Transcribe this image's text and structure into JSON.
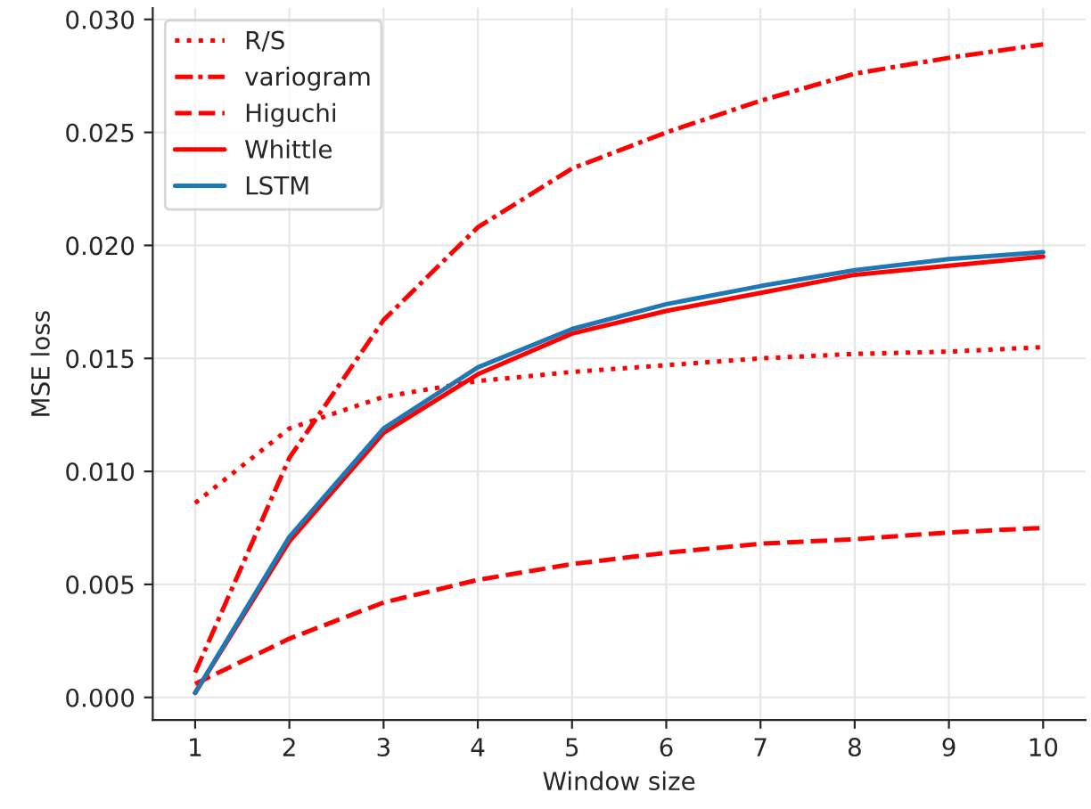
{
  "chart_data": {
    "type": "line",
    "xlabel": "Window size",
    "ylabel": "MSE loss",
    "x": [
      1,
      2,
      3,
      4,
      5,
      6,
      7,
      8,
      9,
      10
    ],
    "series": [
      {
        "name": "R/S",
        "color": "#ff0000",
        "line_style": "dotted",
        "values": [
          0.0086,
          0.0119,
          0.0133,
          0.014,
          0.0144,
          0.0147,
          0.015,
          0.0152,
          0.0153,
          0.0155
        ]
      },
      {
        "name": "variogram",
        "color": "#ff0000",
        "line_style": "dashdot",
        "values": [
          0.0011,
          0.0106,
          0.0167,
          0.0208,
          0.0234,
          0.025,
          0.0264,
          0.0276,
          0.0283,
          0.0289
        ]
      },
      {
        "name": "Higuchi",
        "color": "#ff0000",
        "line_style": "dashed",
        "values": [
          0.0006,
          0.0026,
          0.0042,
          0.0052,
          0.0059,
          0.0064,
          0.0068,
          0.007,
          0.0073,
          0.0075
        ]
      },
      {
        "name": "Whittle",
        "color": "#ff0000",
        "line_style": "solid",
        "values": [
          0.0002,
          0.0069,
          0.0117,
          0.0143,
          0.0161,
          0.0171,
          0.0179,
          0.0187,
          0.0191,
          0.0195
        ]
      },
      {
        "name": "LSTM",
        "color": "#1f77b4",
        "line_style": "solid",
        "values": [
          0.0002,
          0.0071,
          0.0119,
          0.0146,
          0.0163,
          0.0174,
          0.0182,
          0.0189,
          0.0194,
          0.0197
        ]
      }
    ],
    "xlim": [
      0.55,
      10.45
    ],
    "ylim": [
      -0.001,
      0.0305
    ],
    "xticks": [
      1,
      2,
      3,
      4,
      5,
      6,
      7,
      8,
      9,
      10
    ],
    "yticks": [
      {
        "value": 0,
        "label": "0.000"
      },
      {
        "value": 0.005,
        "label": "0.005"
      },
      {
        "value": 0.01,
        "label": "0.010"
      },
      {
        "value": 0.015,
        "label": "0.015"
      },
      {
        "value": 0.02,
        "label": "0.020"
      },
      {
        "value": 0.025,
        "label": "0.025"
      },
      {
        "value": 0.03,
        "label": "0.030"
      }
    ],
    "grid": true,
    "legend": "top left"
  }
}
